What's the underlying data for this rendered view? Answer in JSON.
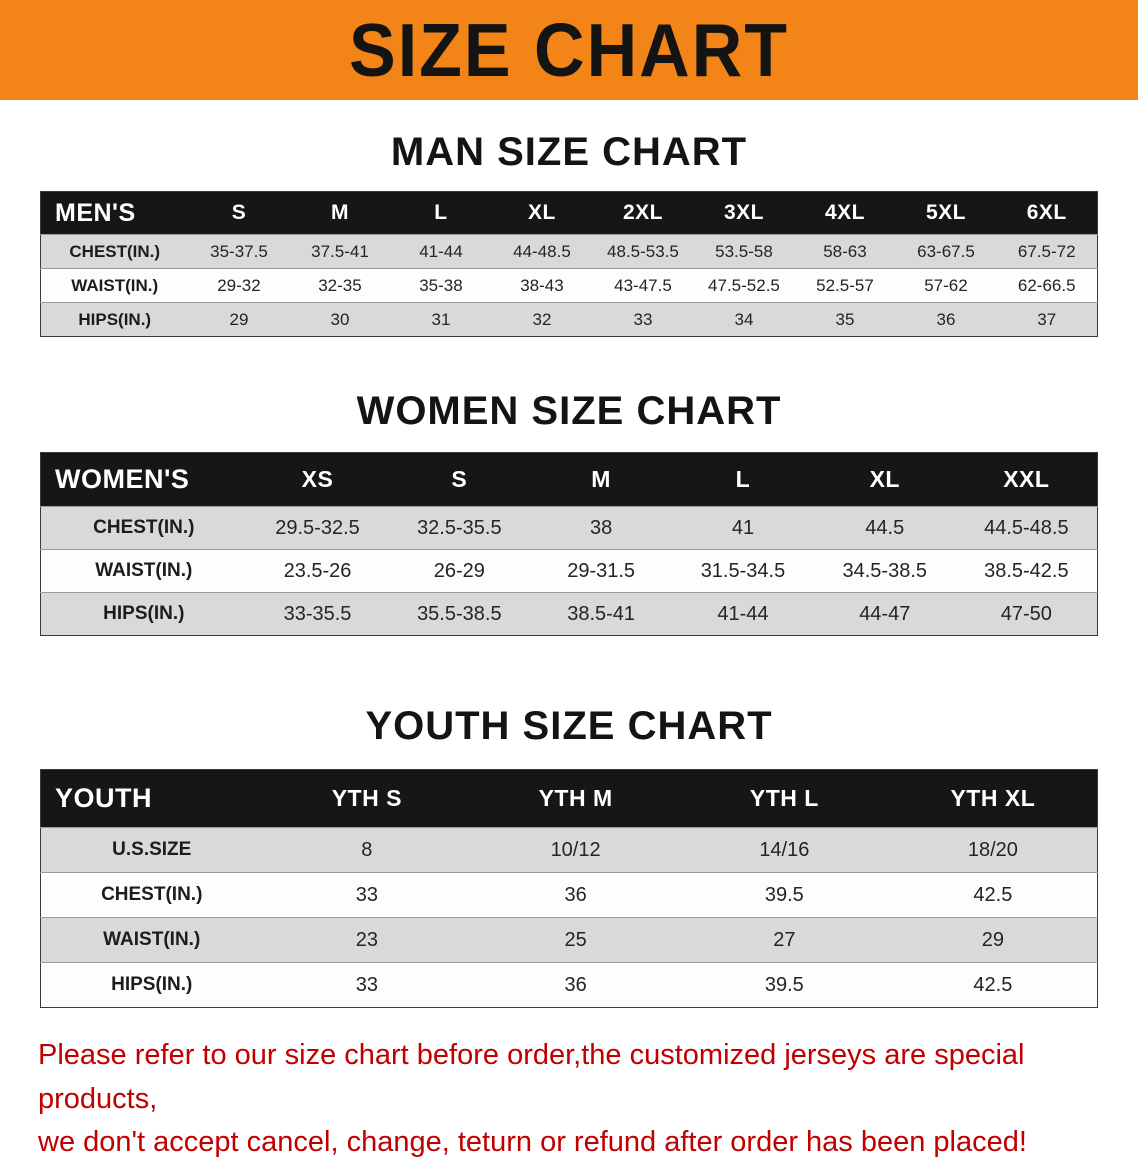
{
  "banner": {
    "title": "SIZE CHART"
  },
  "colors": {
    "banner-bg": "#f28418",
    "header-bg": "#161616",
    "stripe-gray": "#d9d9d9",
    "disclaimer-red": "#c00000",
    "text-black": "#141414"
  },
  "sections": [
    {
      "heading": "MAN SIZE CHART",
      "table": {
        "header": [
          "MEN'S",
          "S",
          "M",
          "L",
          "XL",
          "2XL",
          "3XL",
          "4XL",
          "5XL",
          "6XL"
        ],
        "rows": [
          [
            "CHEST(IN.)",
            "35-37.5",
            "37.5-41",
            "41-44",
            "44-48.5",
            "48.5-53.5",
            "53.5-58",
            "58-63",
            "63-67.5",
            "67.5-72"
          ],
          [
            "WAIST(IN.)",
            "29-32",
            "32-35",
            "35-38",
            "38-43",
            "43-47.5",
            "47.5-52.5",
            "52.5-57",
            "57-62",
            "62-66.5"
          ],
          [
            "HIPS(IN.)",
            "29",
            "30",
            "31",
            "32",
            "33",
            "34",
            "35",
            "36",
            "37"
          ]
        ]
      }
    },
    {
      "heading": "WOMEN SIZE CHART",
      "table": {
        "header": [
          "WOMEN'S",
          "XS",
          "S",
          "M",
          "L",
          "XL",
          "XXL"
        ],
        "rows": [
          [
            "CHEST(IN.)",
            "29.5-32.5",
            "32.5-35.5",
            "38",
            "41",
            "44.5",
            "44.5-48.5"
          ],
          [
            "WAIST(IN.)",
            "23.5-26",
            "26-29",
            "29-31.5",
            "31.5-34.5",
            "34.5-38.5",
            "38.5-42.5"
          ],
          [
            "HIPS(IN.)",
            "33-35.5",
            "35.5-38.5",
            "38.5-41",
            "41-44",
            "44-47",
            "47-50"
          ]
        ]
      }
    },
    {
      "heading": "YOUTH SIZE CHART",
      "table": {
        "header": [
          "YOUTH",
          "YTH S",
          "YTH M",
          "YTH L",
          "YTH XL"
        ],
        "rows": [
          [
            "U.S.SIZE",
            "8",
            "10/12",
            "14/16",
            "18/20"
          ],
          [
            "CHEST(IN.)",
            "33",
            "36",
            "39.5",
            "42.5"
          ],
          [
            "WAIST(IN.)",
            "23",
            "25",
            "27",
            "29"
          ],
          [
            "HIPS(IN.)",
            "33",
            "36",
            "39.5",
            "42.5"
          ]
        ]
      }
    }
  ],
  "disclaimer": {
    "line1": "Please refer to our size chart before order,the customized jerseys are special products,",
    "line2": "we don't accept cancel, change, teturn or refund after order has been placed!"
  }
}
